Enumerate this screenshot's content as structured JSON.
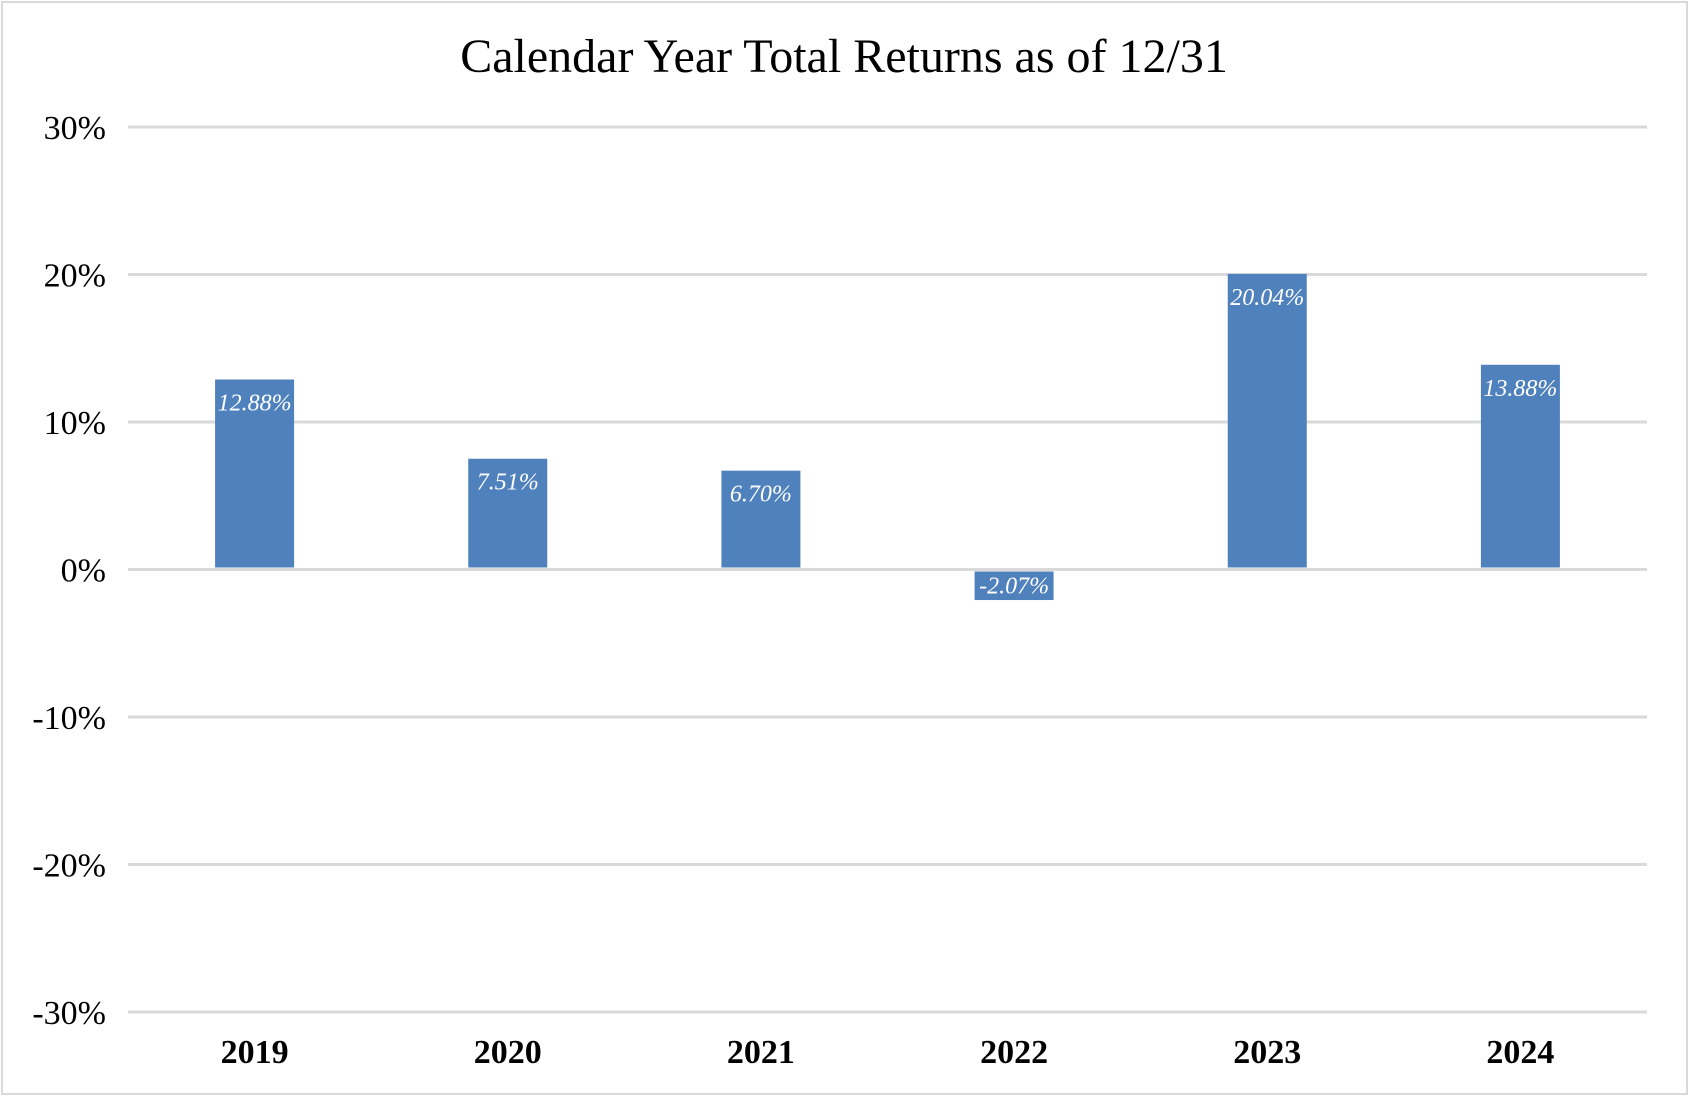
{
  "chart_data": {
    "type": "bar",
    "title": "Calendar Year Total Returns as of 12/31",
    "xlabel": "",
    "ylabel": "",
    "categories": [
      "2019",
      "2020",
      "2021",
      "2022",
      "2023",
      "2024"
    ],
    "values": [
      12.88,
      7.51,
      6.7,
      -2.07,
      20.04,
      13.88
    ],
    "data_labels": [
      "12.88%",
      "7.51%",
      "6.70%",
      "-2.07%",
      "20.04%",
      "13.88%"
    ],
    "ylim": [
      -30,
      30
    ],
    "yticks": [
      30,
      20,
      10,
      0,
      -10,
      -20,
      -30
    ],
    "ytick_labels": [
      "30%",
      "20%",
      "10%",
      "0%",
      "-10%",
      "-20%",
      "-30%"
    ],
    "grid": true,
    "legend": "none",
    "colors": {
      "bar": "#4f81bd",
      "grid": "#d9d9d9",
      "label": "#ffffff"
    }
  }
}
